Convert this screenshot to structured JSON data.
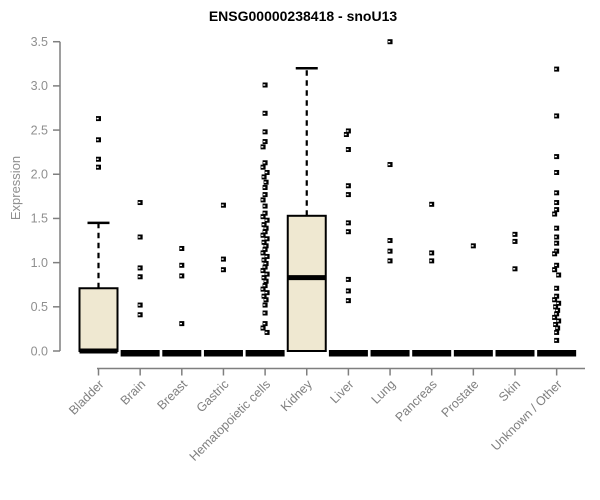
{
  "chart_data": {
    "type": "boxplot",
    "title": "ENSG00000238418 - snoU13",
    "ylabel": "Expression",
    "xlabel": "",
    "ylim": [
      0,
      3.5
    ],
    "yticks": [
      "0.0",
      "0.5",
      "1.0",
      "1.5",
      "2.0",
      "2.5",
      "3.0",
      "3.5"
    ],
    "grid": "off",
    "legend": "none",
    "categories": [
      "Bladder",
      "Brain",
      "Breast",
      "Gastric",
      "Hematopoietic cells",
      "Kidney",
      "Liver",
      "Lung",
      "Pancreas",
      "Prostate",
      "Skin",
      "Unknown / Other"
    ],
    "boxes": [
      {
        "category": "Bladder",
        "q1": 0,
        "median": 0,
        "q3": 0.71,
        "whisker_low": 0,
        "whisker_high": 1.45,
        "points": [
          2.63,
          2.39,
          2.17,
          2.08
        ]
      },
      {
        "category": "Brain",
        "q1": 0,
        "median": 0,
        "q3": 0,
        "whisker_low": 0,
        "whisker_high": 0,
        "points": [
          1.68,
          1.29,
          0.94,
          0.84,
          0.52,
          0.41
        ]
      },
      {
        "category": "Breast",
        "q1": 0,
        "median": 0,
        "q3": 0,
        "whisker_low": 0,
        "whisker_high": 0,
        "points": [
          1.16,
          0.97,
          0.85,
          0.31
        ]
      },
      {
        "category": "Gastric",
        "q1": 0,
        "median": 0,
        "q3": 0,
        "whisker_low": 0,
        "whisker_high": 0,
        "points": [
          1.65,
          1.04,
          0.92
        ]
      },
      {
        "category": "Hematopoietic cells",
        "q1": 0,
        "median": 0,
        "q3": 0,
        "whisker_low": 0,
        "whisker_high": 0,
        "points": [
          3.01,
          2.69,
          2.48,
          2.37,
          2.31,
          2.13,
          2.08,
          2.02,
          1.97,
          1.91,
          1.85,
          1.77,
          1.71,
          1.64,
          1.56,
          1.52,
          1.48,
          1.43,
          1.39,
          1.35,
          1.31,
          1.27,
          1.23,
          1.19,
          1.15,
          1.11,
          1.07,
          1.03,
          0.99,
          0.95,
          0.91,
          0.87,
          0.83,
          0.79,
          0.74,
          0.7,
          0.66,
          0.62,
          0.58,
          0.52,
          0.43,
          0.31,
          0.26,
          0.21
        ]
      },
      {
        "category": "Kidney",
        "q1": 0,
        "median": 0.83,
        "q3": 1.53,
        "whisker_low": 0,
        "whisker_high": 3.2,
        "points": []
      },
      {
        "category": "Liver",
        "q1": 0,
        "median": 0,
        "q3": 0,
        "whisker_low": 0,
        "whisker_high": 0,
        "points": [
          2.49,
          2.45,
          2.28,
          1.87,
          1.77,
          1.45,
          1.35,
          0.81,
          0.68,
          0.57
        ]
      },
      {
        "category": "Lung",
        "q1": 0,
        "median": 0,
        "q3": 0,
        "whisker_low": 0,
        "whisker_high": 0,
        "points": [
          3.5,
          2.11,
          1.25,
          1.13,
          1.02
        ]
      },
      {
        "category": "Pancreas",
        "q1": 0,
        "median": 0,
        "q3": 0,
        "whisker_low": 0,
        "whisker_high": 0,
        "points": [
          1.66,
          1.11,
          1.02
        ]
      },
      {
        "category": "Prostate",
        "q1": 0,
        "median": 0,
        "q3": 0,
        "whisker_low": 0,
        "whisker_high": 0,
        "points": [
          1.19
        ]
      },
      {
        "category": "Skin",
        "q1": 0,
        "median": 0,
        "q3": 0,
        "whisker_low": 0,
        "whisker_high": 0,
        "points": [
          1.32,
          1.24,
          0.93
        ]
      },
      {
        "category": "Unknown / Other",
        "q1": 0,
        "median": 0,
        "q3": 0,
        "whisker_low": 0,
        "whisker_high": 0,
        "points": [
          3.19,
          2.66,
          2.2,
          2.02,
          1.79,
          1.68,
          1.6,
          1.55,
          1.39,
          1.29,
          1.22,
          1.13,
          1.1,
          0.97,
          0.92,
          0.86,
          0.71,
          0.62,
          0.58,
          0.54,
          0.5,
          0.46,
          0.42,
          0.38,
          0.34,
          0.3,
          0.26,
          0.21,
          0.12
        ]
      }
    ],
    "colors": {
      "box_fill": "#EFE8D1",
      "box_border": "#000000",
      "median": "#000000",
      "point": "#000000",
      "axis": "#7f7f7f",
      "y_tick_text": "#8f8f8f",
      "x_tick_text": "#7f7f7f",
      "title_text": "#000000",
      "background": "#ffffff"
    }
  }
}
